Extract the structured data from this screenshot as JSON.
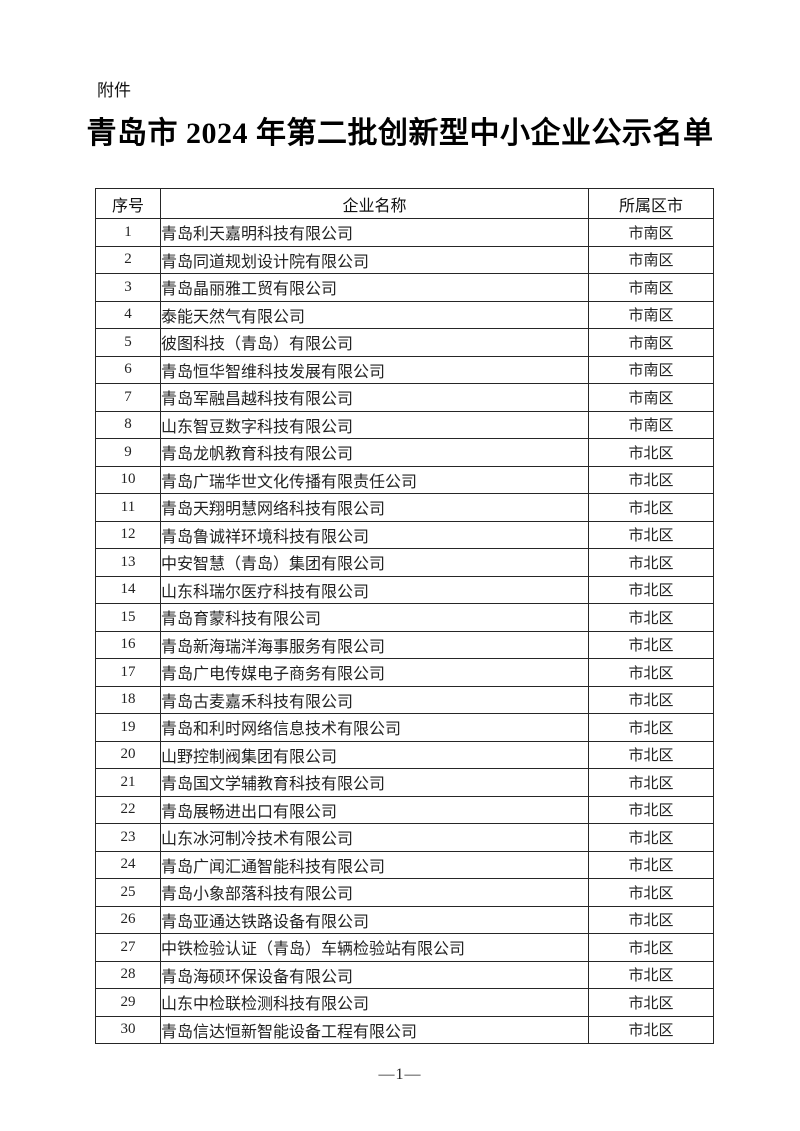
{
  "page": {
    "attachment_label": "附件",
    "title": "青岛市 2024 年第二批创新型中小企业公示名单",
    "page_number": "—1—"
  },
  "table": {
    "columns": [
      "序号",
      "企业名称",
      "所属区市"
    ],
    "rows": [
      {
        "no": "1",
        "name": "青岛利天嘉明科技有限公司",
        "district": "市南区"
      },
      {
        "no": "2",
        "name": "青岛同道规划设计院有限公司",
        "district": "市南区"
      },
      {
        "no": "3",
        "name": "青岛晶丽雅工贸有限公司",
        "district": "市南区"
      },
      {
        "no": "4",
        "name": "泰能天然气有限公司",
        "district": "市南区"
      },
      {
        "no": "5",
        "name": "彼图科技（青岛）有限公司",
        "district": "市南区"
      },
      {
        "no": "6",
        "name": "青岛恒华智维科技发展有限公司",
        "district": "市南区"
      },
      {
        "no": "7",
        "name": "青岛军融昌越科技有限公司",
        "district": "市南区"
      },
      {
        "no": "8",
        "name": "山东智豆数字科技有限公司",
        "district": "市南区"
      },
      {
        "no": "9",
        "name": "青岛龙帆教育科技有限公司",
        "district": "市北区"
      },
      {
        "no": "10",
        "name": "青岛广瑞华世文化传播有限责任公司",
        "district": "市北区"
      },
      {
        "no": "11",
        "name": "青岛天翔明慧网络科技有限公司",
        "district": "市北区"
      },
      {
        "no": "12",
        "name": "青岛鲁诚祥环境科技有限公司",
        "district": "市北区"
      },
      {
        "no": "13",
        "name": "中安智慧（青岛）集团有限公司",
        "district": "市北区"
      },
      {
        "no": "14",
        "name": "山东科瑞尔医疗科技有限公司",
        "district": "市北区"
      },
      {
        "no": "15",
        "name": "青岛育蒙科技有限公司",
        "district": "市北区"
      },
      {
        "no": "16",
        "name": "青岛新海瑞洋海事服务有限公司",
        "district": "市北区"
      },
      {
        "no": "17",
        "name": "青岛广电传媒电子商务有限公司",
        "district": "市北区"
      },
      {
        "no": "18",
        "name": "青岛古麦嘉禾科技有限公司",
        "district": "市北区"
      },
      {
        "no": "19",
        "name": "青岛和利时网络信息技术有限公司",
        "district": "市北区"
      },
      {
        "no": "20",
        "name": "山野控制阀集团有限公司",
        "district": "市北区"
      },
      {
        "no": "21",
        "name": "青岛国文学辅教育科技有限公司",
        "district": "市北区"
      },
      {
        "no": "22",
        "name": "青岛展畅进出口有限公司",
        "district": "市北区"
      },
      {
        "no": "23",
        "name": "山东冰河制冷技术有限公司",
        "district": "市北区"
      },
      {
        "no": "24",
        "name": "青岛广闻汇通智能科技有限公司",
        "district": "市北区"
      },
      {
        "no": "25",
        "name": "青岛小象部落科技有限公司",
        "district": "市北区"
      },
      {
        "no": "26",
        "name": "青岛亚通达铁路设备有限公司",
        "district": "市北区"
      },
      {
        "no": "27",
        "name": "中铁检验认证（青岛）车辆检验站有限公司",
        "district": "市北区"
      },
      {
        "no": "28",
        "name": "青岛海硕环保设备有限公司",
        "district": "市北区"
      },
      {
        "no": "29",
        "name": "山东中检联检测科技有限公司",
        "district": "市北区"
      },
      {
        "no": "30",
        "name": "青岛信达恒新智能设备工程有限公司",
        "district": "市北区"
      }
    ]
  }
}
